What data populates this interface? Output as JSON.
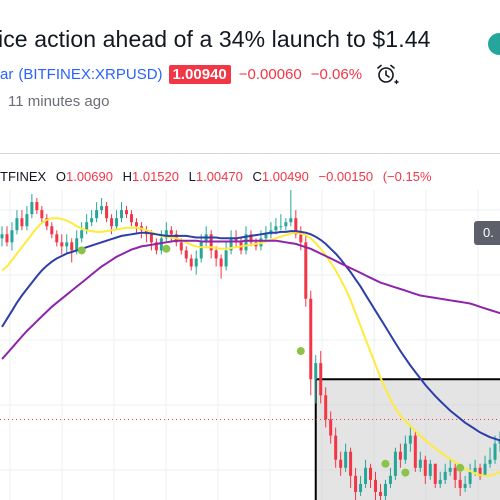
{
  "header": {
    "headline": "ice action ahead of a 34% launch to $1.44",
    "ticker_name": "ar",
    "ticker_symbol": "(BITFINEX:XRPUSD)",
    "price": "1.00940",
    "change": "−0.00060",
    "change_pct": "−0.06%",
    "time_ago": "11 minutes ago",
    "colors": {
      "accent": "#2962ff",
      "down": "#f23645",
      "up": "#26a69a"
    }
  },
  "ohlc": {
    "exchange": "TFINEX",
    "open_label": "O",
    "open": "1.00690",
    "high_label": "H",
    "high": "1.01520",
    "low_label": "L",
    "low": "1.00470",
    "close_label": "C",
    "close": "1.00490",
    "change": "−0.00150",
    "change_pct": "(−0.15%"
  },
  "scale_badge": "0.",
  "icons": {
    "alert": "alarm-clock-icon",
    "headline_badge": "circle-badge-icon"
  },
  "chart_data": {
    "type": "line",
    "title": "",
    "x": [
      0,
      1,
      2,
      3,
      4,
      5,
      6,
      7,
      8,
      9,
      10,
      11,
      12,
      13,
      14,
      15,
      16,
      17,
      18,
      19,
      20,
      21,
      22,
      23,
      24,
      25,
      26,
      27,
      28,
      29,
      30,
      31,
      32,
      33,
      34,
      35,
      36,
      37,
      38,
      39,
      40,
      41,
      42,
      43,
      44,
      45,
      46,
      47,
      48,
      49,
      50,
      51,
      52,
      53,
      54,
      55,
      56,
      57,
      58,
      59,
      60,
      61,
      62,
      63,
      64,
      65,
      66,
      67,
      68,
      69,
      70,
      71,
      72,
      73,
      74,
      75,
      76,
      77,
      78,
      79,
      80,
      81,
      82,
      83,
      84,
      85,
      86,
      87,
      88,
      89,
      90,
      91,
      92,
      93,
      94,
      95,
      96,
      97,
      98,
      99,
      100
    ],
    "candles": {
      "open": [
        1.0275,
        1.028,
        1.027,
        1.0285,
        1.03,
        1.029,
        1.0305,
        1.032,
        1.031,
        1.03,
        1.029,
        1.028,
        1.027,
        1.0265,
        1.027,
        1.026,
        1.0275,
        1.0285,
        1.0295,
        1.03,
        1.031,
        1.0315,
        1.03,
        1.029,
        1.03,
        1.031,
        1.0305,
        1.0295,
        1.029,
        1.0285,
        1.028,
        1.027,
        1.026,
        1.0275,
        1.0285,
        1.028,
        1.027,
        1.026,
        1.025,
        1.024,
        1.025,
        1.027,
        1.028,
        1.026,
        1.025,
        1.024,
        1.026,
        1.0275,
        1.027,
        1.026,
        1.028,
        1.027,
        1.0265,
        1.0275,
        1.028,
        1.0285,
        1.029,
        1.029,
        1.0295,
        1.03,
        1.028,
        1.027,
        1.02,
        1.01,
        1.012,
        1.008,
        1.005,
        1.003,
        1.0,
        0.999,
        1.001,
        0.998,
        0.996,
        0.997,
        0.999,
        0.9975,
        0.996,
        0.9955,
        0.997,
        0.998,
        1.001,
        1.0,
        1.002,
        1.003,
        0.999,
        1.0,
        0.998,
        0.9995,
        0.997,
        0.9975,
        0.9985,
        0.999,
        0.9975,
        0.9965,
        0.997,
        0.9985,
        0.999,
        0.998,
        0.9995,
        1.0,
        1.002
      ],
      "close": [
        1.028,
        1.027,
        1.0285,
        1.03,
        1.029,
        1.0305,
        1.032,
        1.031,
        1.03,
        1.029,
        1.028,
        1.027,
        1.0265,
        1.027,
        1.026,
        1.0275,
        1.0285,
        1.0295,
        1.03,
        1.031,
        1.0315,
        1.03,
        1.029,
        1.03,
        1.031,
        1.0305,
        1.0295,
        1.029,
        1.0285,
        1.028,
        1.027,
        1.026,
        1.0275,
        1.0285,
        1.028,
        1.027,
        1.026,
        1.025,
        1.024,
        1.025,
        1.027,
        1.028,
        1.026,
        1.025,
        1.024,
        1.026,
        1.0275,
        1.027,
        1.026,
        1.028,
        1.027,
        1.0265,
        1.0275,
        1.028,
        1.0285,
        1.029,
        1.029,
        1.0295,
        1.03,
        1.028,
        1.027,
        1.02,
        1.01,
        1.012,
        1.008,
        1.005,
        1.003,
        1.0,
        0.999,
        1.001,
        0.998,
        0.996,
        0.997,
        0.999,
        0.9975,
        0.996,
        0.9955,
        0.997,
        0.998,
        1.001,
        1.0,
        1.002,
        1.003,
        0.999,
        1.0,
        0.998,
        0.9995,
        0.997,
        0.9975,
        0.9985,
        0.999,
        0.9975,
        0.9965,
        0.997,
        0.9985,
        0.999,
        0.998,
        0.9995,
        1.0,
        1.002,
        1.0025
      ],
      "high": [
        1.029,
        1.029,
        1.0295,
        1.031,
        1.031,
        1.0315,
        1.033,
        1.0325,
        1.0315,
        1.0305,
        1.0295,
        1.0285,
        1.028,
        1.028,
        1.0275,
        1.0285,
        1.0295,
        1.0305,
        1.031,
        1.032,
        1.0325,
        1.032,
        1.0305,
        1.031,
        1.032,
        1.0315,
        1.031,
        1.03,
        1.0295,
        1.029,
        1.0285,
        1.0275,
        1.0285,
        1.0295,
        1.029,
        1.0285,
        1.0275,
        1.0265,
        1.0255,
        1.026,
        1.028,
        1.029,
        1.0285,
        1.0265,
        1.0255,
        1.027,
        1.0285,
        1.0285,
        1.0275,
        1.029,
        1.0285,
        1.0275,
        1.0285,
        1.029,
        1.0295,
        1.03,
        1.0305,
        1.03,
        1.0335,
        1.031,
        1.029,
        1.028,
        1.021,
        1.013,
        1.0135,
        1.009,
        1.006,
        1.004,
        1.001,
        1.002,
        1.0015,
        0.999,
        0.998,
        1.0,
        0.9995,
        0.9985,
        0.997,
        0.9975,
        0.999,
        1.0015,
        1.002,
        1.003,
        1.004,
        1.0035,
        1.001,
        1.0005,
        1.0,
        0.9995,
        0.9985,
        0.9995,
        1.0,
        0.9995,
        0.9985,
        0.998,
        0.9995,
        1.0,
        0.9995,
        1.0005,
        1.0015,
        1.003,
        1.0035
      ],
      "low": [
        1.0265,
        1.0265,
        1.026,
        1.028,
        1.0285,
        1.0285,
        1.03,
        1.0305,
        1.0295,
        1.0285,
        1.0275,
        1.0265,
        1.0255,
        1.0255,
        1.0245,
        1.0255,
        1.027,
        1.028,
        1.029,
        1.0295,
        1.0305,
        1.0295,
        1.028,
        1.0285,
        1.0295,
        1.03,
        1.029,
        1.028,
        1.0275,
        1.027,
        1.026,
        1.0255,
        1.0255,
        1.027,
        1.027,
        1.0265,
        1.0255,
        1.0245,
        1.0235,
        1.023,
        1.0245,
        1.0265,
        1.025,
        1.024,
        1.0225,
        1.0235,
        1.0255,
        1.0265,
        1.0255,
        1.0255,
        1.0265,
        1.026,
        1.026,
        1.027,
        1.0275,
        1.028,
        1.0285,
        1.0285,
        1.029,
        1.0275,
        1.026,
        1.019,
        1.008,
        1.007,
        1.007,
        1.004,
        1.002,
        0.999,
        0.998,
        0.9985,
        0.9965,
        0.995,
        0.9955,
        0.9965,
        0.9965,
        0.995,
        0.9945,
        0.995,
        0.9965,
        0.9975,
        0.999,
        0.9995,
        1.001,
        0.9985,
        0.9985,
        0.997,
        0.9975,
        0.9965,
        0.9965,
        0.997,
        0.998,
        0.9965,
        0.9955,
        0.996,
        0.9965,
        0.998,
        0.9975,
        0.998,
        0.999,
        0.9995,
        1.001
      ]
    },
    "series": [
      {
        "color": "#ffeb3b",
        "values": [
          1.0235,
          1.024,
          1.0248,
          1.0256,
          1.0264,
          1.0272,
          1.028,
          1.0288,
          1.0294,
          1.0298,
          1.03,
          1.03,
          1.0299,
          1.0297,
          1.0294,
          1.029,
          1.0287,
          1.0285,
          1.0284,
          1.0283,
          1.0283,
          1.0284,
          1.0285,
          1.0286,
          1.0287,
          1.0288,
          1.0288,
          1.0288,
          1.0287,
          1.0285,
          1.0283,
          1.028,
          1.0278,
          1.0277,
          1.0276,
          1.0275,
          1.0273,
          1.027,
          1.0267,
          1.0265,
          1.0264,
          1.0264,
          1.0264,
          1.0263,
          1.0262,
          1.0262,
          1.0263,
          1.0264,
          1.0265,
          1.0266,
          1.0267,
          1.0268,
          1.0269,
          1.0271,
          1.0273,
          1.0275,
          1.0277,
          1.0279,
          1.0281,
          1.0282,
          1.0281,
          1.0279,
          1.0275,
          1.0269,
          1.0262,
          1.0254,
          1.0245,
          1.0235,
          1.0224,
          1.0212,
          1.0198,
          1.0182,
          1.0166,
          1.015,
          1.0134,
          1.0118,
          1.0102,
          1.0088,
          1.0075,
          1.0064,
          1.0055,
          1.0048,
          1.0042,
          1.0036,
          1.003,
          1.0024,
          1.0019,
          1.0014,
          1.001,
          1.0005,
          1.0001,
          0.9997,
          0.9993,
          0.9989,
          0.9986,
          0.9983,
          0.9981,
          0.998,
          0.998,
          0.9982,
          0.9985
        ]
      },
      {
        "color": "#2e3ea8",
        "values": [
          1.0165,
          1.0175,
          1.0185,
          1.0195,
          1.0204,
          1.0212,
          1.022,
          1.0228,
          1.0235,
          1.0241,
          1.0246,
          1.025,
          1.0253,
          1.0256,
          1.0258,
          1.026,
          1.0262,
          1.0264,
          1.0266,
          1.0268,
          1.027,
          1.0272,
          1.0274,
          1.0276,
          1.0278,
          1.0279,
          1.028,
          1.0281,
          1.0282,
          1.0282,
          1.0281,
          1.028,
          1.0279,
          1.0278,
          1.0278,
          1.0278,
          1.0278,
          1.0278,
          1.0277,
          1.0276,
          1.0276,
          1.0276,
          1.0276,
          1.0276,
          1.0275,
          1.0275,
          1.0275,
          1.0275,
          1.0276,
          1.0277,
          1.0278,
          1.0279,
          1.028,
          1.0281,
          1.0282,
          1.0282,
          1.0283,
          1.0283,
          1.0284,
          1.0284,
          1.0283,
          1.0282,
          1.028,
          1.0277,
          1.0273,
          1.0268,
          1.0262,
          1.0256,
          1.0249,
          1.0241,
          1.0233,
          1.0224,
          1.0215,
          1.0205,
          1.0195,
          1.0185,
          1.0175,
          1.0165,
          1.0155,
          1.0145,
          1.0135,
          1.0126,
          1.0117,
          1.0109,
          1.0101,
          1.0093,
          1.0086,
          1.0079,
          1.0073,
          1.0067,
          1.0061,
          1.0056,
          1.0051,
          1.0046,
          1.0042,
          1.0038,
          1.0034,
          1.0031,
          1.0028,
          1.0026,
          1.0024
        ]
      },
      {
        "color": "#8e24aa",
        "values": [
          1.0125,
          1.0132,
          1.0139,
          1.0146,
          1.0153,
          1.016,
          1.0166,
          1.0172,
          1.0178,
          1.0184,
          1.019,
          1.0195,
          1.02,
          1.0205,
          1.021,
          1.0215,
          1.022,
          1.0225,
          1.023,
          1.0235,
          1.024,
          1.0244,
          1.0248,
          1.0252,
          1.0255,
          1.0258,
          1.0261,
          1.0263,
          1.0265,
          1.0266,
          1.0267,
          1.0268,
          1.0269,
          1.027,
          1.0271,
          1.0272,
          1.0272,
          1.0272,
          1.0272,
          1.0272,
          1.0271,
          1.0271,
          1.0271,
          1.0271,
          1.0271,
          1.0271,
          1.0271,
          1.0271,
          1.0271,
          1.0272,
          1.0272,
          1.0272,
          1.0272,
          1.0272,
          1.0272,
          1.0272,
          1.0271,
          1.027,
          1.0269,
          1.0268,
          1.0266,
          1.0264,
          1.0262,
          1.0259,
          1.0256,
          1.0253,
          1.025,
          1.0247,
          1.0244,
          1.0241,
          1.0238,
          1.0235,
          1.0232,
          1.0229,
          1.0226,
          1.0223,
          1.022,
          1.0218,
          1.0216,
          1.0214,
          1.0212,
          1.021,
          1.0208,
          1.0206,
          1.0204,
          1.0203,
          1.0202,
          1.0201,
          1.02,
          1.0199,
          1.0198,
          1.0197,
          1.0196,
          1.0195,
          1.0194,
          1.0192,
          1.019,
          1.0188,
          1.0186,
          1.0184,
          1.0182
        ]
      }
    ],
    "markers": [
      {
        "x": 16,
        "y": 1.026,
        "color": "#8bc34a"
      },
      {
        "x": 33,
        "y": 1.0262,
        "color": "#8bc34a"
      },
      {
        "x": 60,
        "y": 1.0135,
        "color": "#8bc34a"
      },
      {
        "x": 77,
        "y": 0.9995,
        "color": "#8bc34a"
      },
      {
        "x": 81,
        "y": 0.9984,
        "color": "#8bc34a"
      },
      {
        "x": 92,
        "y": 0.999,
        "color": "#8bc34a"
      }
    ],
    "range_box": {
      "x_start": 63,
      "x_end": 100,
      "y_top": 1.01,
      "y_bottom": 0.995
    },
    "price_line": 1.005,
    "ylim": [
      0.995,
      1.0335
    ],
    "colors": {
      "up": "#26a69a",
      "down": "#f23645",
      "grid": "#eeeff3",
      "box_fill": "#cdcdcd",
      "box_stroke": "#000000",
      "price_line": "#f23645"
    }
  }
}
